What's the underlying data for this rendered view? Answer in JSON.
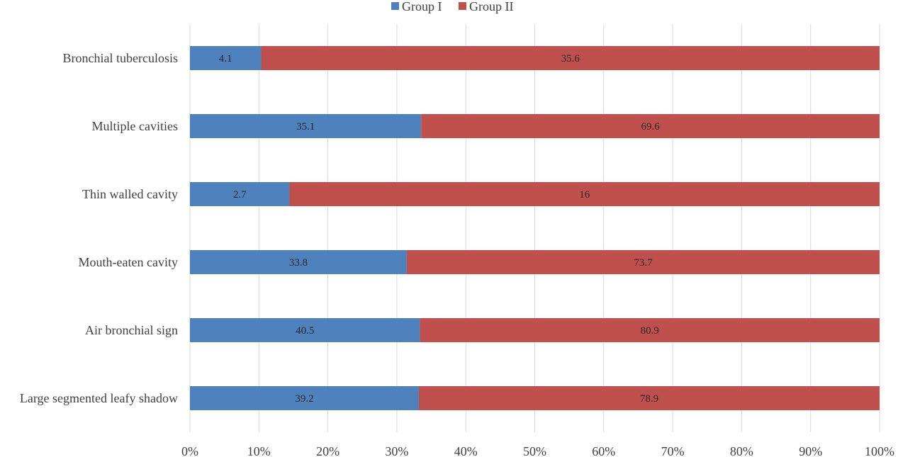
{
  "chart_data": {
    "type": "bar",
    "orientation": "horizontal",
    "stacked": "percent",
    "categories": [
      "Large segmented leafy shadow",
      "Air bronchial sign",
      "Mouth-eaten cavity",
      "Thin walled cavity",
      "Multiple cavities",
      "Bronchial tuberculosis"
    ],
    "series": [
      {
        "name": "Group I",
        "color": "#4f81bd",
        "values": [
          39.2,
          40.5,
          33.8,
          2.7,
          35.1,
          4.1
        ]
      },
      {
        "name": "Group II",
        "color": "#c0504d",
        "values": [
          78.9,
          80.9,
          73.7,
          16,
          69.6,
          35.6
        ]
      }
    ],
    "x_ticks": [
      "0%",
      "10%",
      "20%",
      "30%",
      "40%",
      "50%",
      "60%",
      "70%",
      "80%",
      "90%",
      "100%"
    ],
    "xlim": [
      0,
      100
    ],
    "grid": "vertical",
    "legend_position": "top"
  }
}
